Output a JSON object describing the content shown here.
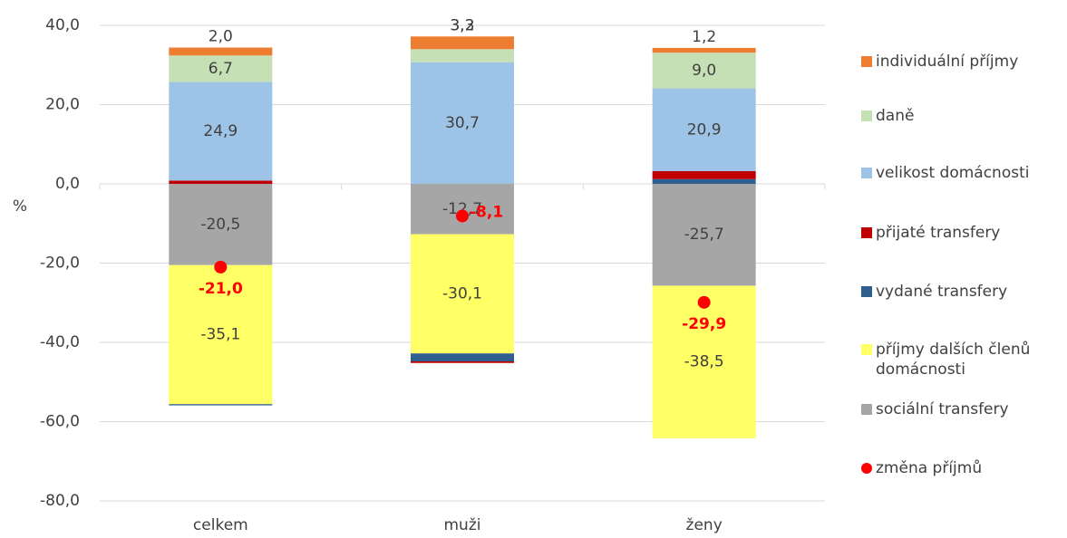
{
  "chart_data": {
    "type": "bar",
    "stacked": true,
    "y_label": "%",
    "categories": [
      "celkem",
      "muži",
      "ženy"
    ],
    "ylim": [
      -80,
      40
    ],
    "yticks": [
      {
        "value": -80,
        "label": "-80,0"
      },
      {
        "value": -60,
        "label": "-60,0"
      },
      {
        "value": -40,
        "label": "-40,0"
      },
      {
        "value": -20,
        "label": "-20,0"
      },
      {
        "value": 0,
        "label": "0,0"
      },
      {
        "value": 20,
        "label": "20,0"
      },
      {
        "value": 40,
        "label": "40,0"
      }
    ],
    "grid": true,
    "legend": "right",
    "series": [
      {
        "name": "individuální příjmy",
        "color": "#ed7d31",
        "values": [
          2.0,
          3.2,
          1.2
        ],
        "value_labels": [
          "2,0",
          "3,2",
          "1,2"
        ]
      },
      {
        "name": "daně",
        "color": "#c5e0b4",
        "values": [
          6.7,
          3.3,
          9.0
        ],
        "value_labels": [
          "6,7",
          "3,3",
          "9,0"
        ]
      },
      {
        "name": "velikost domácnosti",
        "color": "#9dc3e6",
        "values": [
          24.9,
          30.7,
          20.9
        ],
        "value_labels": [
          "24,9",
          "30,7",
          "20,9"
        ]
      },
      {
        "name": "přijaté transfery",
        "color": "#c00000",
        "values": [
          0.8,
          -0.4,
          2.0
        ]
      },
      {
        "name": "vydané transfery",
        "color": "#2e5f8e",
        "values": [
          -0.3,
          -2.0,
          1.2
        ]
      },
      {
        "name": "příjmy dalších členů domácnosti",
        "color": "#ffff66",
        "values": [
          -35.1,
          -30.1,
          -38.5
        ],
        "value_labels": [
          "-35,1",
          "-30,1",
          "-38,5"
        ]
      },
      {
        "name": "sociální transfery",
        "color": "#a6a6a6",
        "values": [
          -20.5,
          -12.7,
          -25.7
        ],
        "value_labels": [
          "-20,5",
          "-12,7",
          "-25,7"
        ]
      },
      {
        "name": "změna příjmů",
        "type": "scatter",
        "color": "#ff0000",
        "values": [
          -21.0,
          -8.1,
          -29.9
        ],
        "value_labels": [
          "-21,0",
          "-8,1",
          "-29,9"
        ]
      }
    ]
  }
}
